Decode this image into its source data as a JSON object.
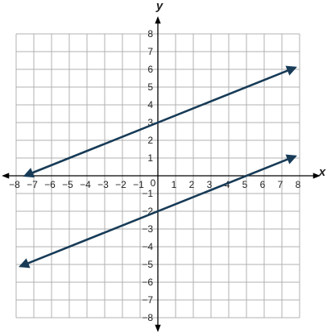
{
  "chart_data": {
    "type": "line",
    "x_label": "x",
    "y_label": "y",
    "xlim": [
      -8,
      8
    ],
    "ylim": [
      -8,
      8
    ],
    "grid": true,
    "xticks": [
      {
        "value": -8,
        "label": "−8"
      },
      {
        "value": -7,
        "label": "−7"
      },
      {
        "value": -6,
        "label": "−6"
      },
      {
        "value": -5,
        "label": "−5"
      },
      {
        "value": -4,
        "label": "−4"
      },
      {
        "value": -3,
        "label": "−3"
      },
      {
        "value": -2,
        "label": "−2"
      },
      {
        "value": -1,
        "label": "−1"
      },
      0,
      1,
      2,
      3,
      4,
      5,
      6,
      7,
      8
    ],
    "yticks": [
      {
        "value": -8,
        "label": "−8"
      },
      {
        "value": -7,
        "label": "−7"
      },
      {
        "value": -6,
        "label": "−6"
      },
      {
        "value": -5,
        "label": "−5"
      },
      {
        "value": -4,
        "label": "−4"
      },
      {
        "value": -3,
        "label": "−3"
      },
      {
        "value": -2,
        "label": "−2"
      },
      {
        "value": -1,
        "label": "−1"
      },
      1,
      2,
      3,
      4,
      5,
      6,
      7,
      8
    ],
    "series": [
      {
        "color": "#173b57",
        "x": [
          -7.5,
          7.75
        ],
        "values": [
          0,
          6.1
        ]
      },
      {
        "color": "#173b57",
        "x": [
          -7.75,
          7.75
        ],
        "values": [
          -5.1,
          1.1
        ]
      }
    ]
  }
}
